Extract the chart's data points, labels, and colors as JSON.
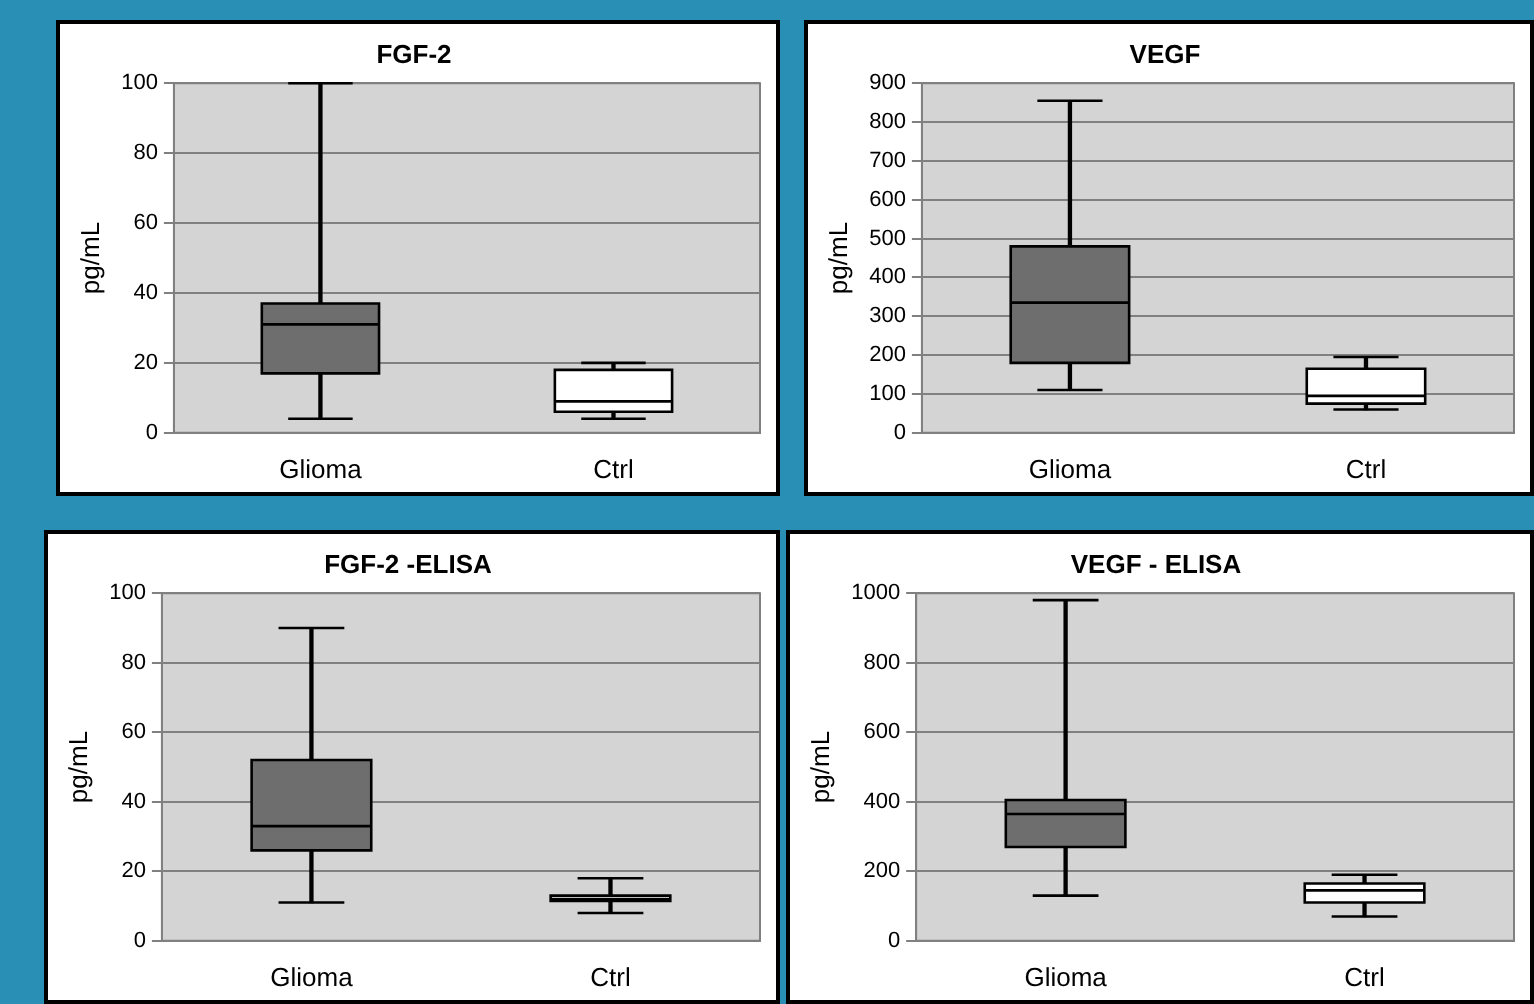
{
  "chart_data": [
    {
      "type": "box",
      "title": "FGF-2",
      "ylabel": "pg/mL",
      "categories": [
        "Glioma",
        "Ctrl"
      ],
      "colors": [
        "#6e6e6e",
        "#ffffff"
      ],
      "ylim": [
        0,
        100
      ],
      "yticks": [
        0,
        20,
        40,
        60,
        80,
        100
      ],
      "grid": "y",
      "boxes": [
        {
          "low": 4,
          "q1": 17,
          "median": 31,
          "q3": 37,
          "high": 100
        },
        {
          "low": 4,
          "q1": 6,
          "median": 9,
          "q3": 18,
          "high": 20
        }
      ]
    },
    {
      "type": "box",
      "title": "VEGF",
      "ylabel": "pg/mL",
      "categories": [
        "Glioma",
        "Ctrl"
      ],
      "colors": [
        "#6e6e6e",
        "#ffffff"
      ],
      "ylim": [
        0,
        900
      ],
      "yticks": [
        0,
        100,
        200,
        300,
        400,
        500,
        600,
        700,
        800,
        900
      ],
      "grid": "y",
      "boxes": [
        {
          "low": 110,
          "q1": 180,
          "median": 335,
          "q3": 480,
          "high": 855
        },
        {
          "low": 60,
          "q1": 75,
          "median": 95,
          "q3": 165,
          "high": 195
        }
      ]
    },
    {
      "type": "box",
      "title": "FGF-2 -ELISA",
      "ylabel": "pg/mL",
      "categories": [
        "Glioma",
        "Ctrl"
      ],
      "colors": [
        "#6e6e6e",
        "#ffffff"
      ],
      "ylim": [
        0,
        100
      ],
      "yticks": [
        0,
        20,
        40,
        60,
        80,
        100
      ],
      "grid": "y",
      "boxes": [
        {
          "low": 11,
          "q1": 26,
          "median": 33,
          "q3": 52,
          "high": 90
        },
        {
          "low": 8,
          "q1": 11.5,
          "median": 12,
          "q3": 13,
          "high": 18
        }
      ]
    },
    {
      "type": "box",
      "title": "VEGF - ELISA",
      "ylabel": "pg/mL",
      "categories": [
        "Glioma",
        "Ctrl"
      ],
      "colors": [
        "#6e6e6e",
        "#ffffff"
      ],
      "ylim": [
        0,
        1000
      ],
      "yticks": [
        0,
        200,
        400,
        600,
        800,
        1000
      ],
      "grid": "y",
      "boxes": [
        {
          "low": 130,
          "q1": 270,
          "median": 365,
          "q3": 405,
          "high": 980
        },
        {
          "low": 70,
          "q1": 110,
          "median": 145,
          "q3": 165,
          "high": 190
        }
      ]
    }
  ]
}
